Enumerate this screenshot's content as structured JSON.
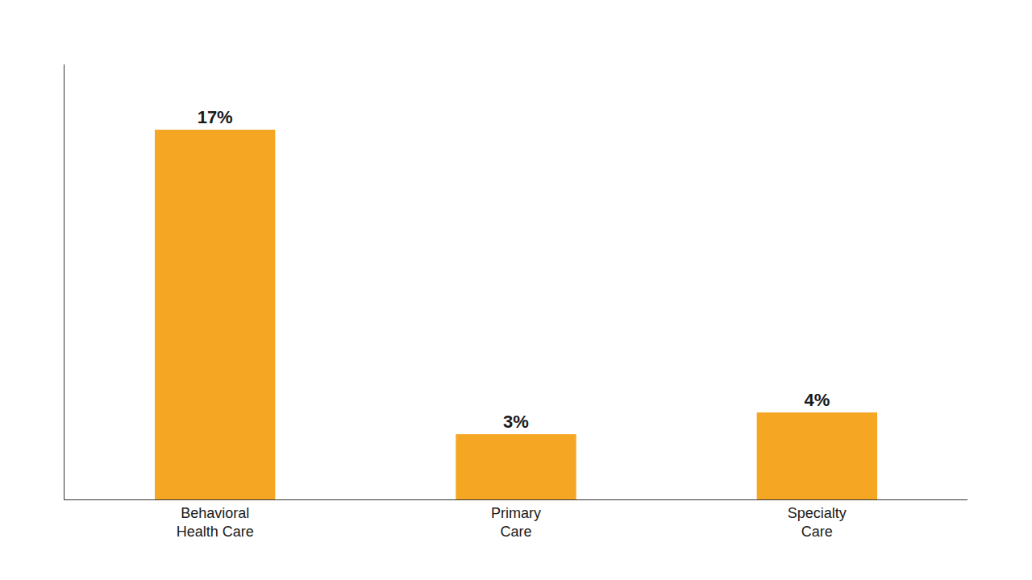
{
  "chart_data": {
    "type": "bar",
    "categories": [
      "Behavioral\nHealth Care",
      "Primary\nCare",
      "Specialty\nCare"
    ],
    "values": [
      17,
      3,
      4
    ],
    "value_labels": [
      "17%",
      "3%",
      "4%"
    ],
    "color": "#F5A623",
    "ylim": [
      0,
      20
    ],
    "grid": false,
    "tick_labels": "x"
  }
}
